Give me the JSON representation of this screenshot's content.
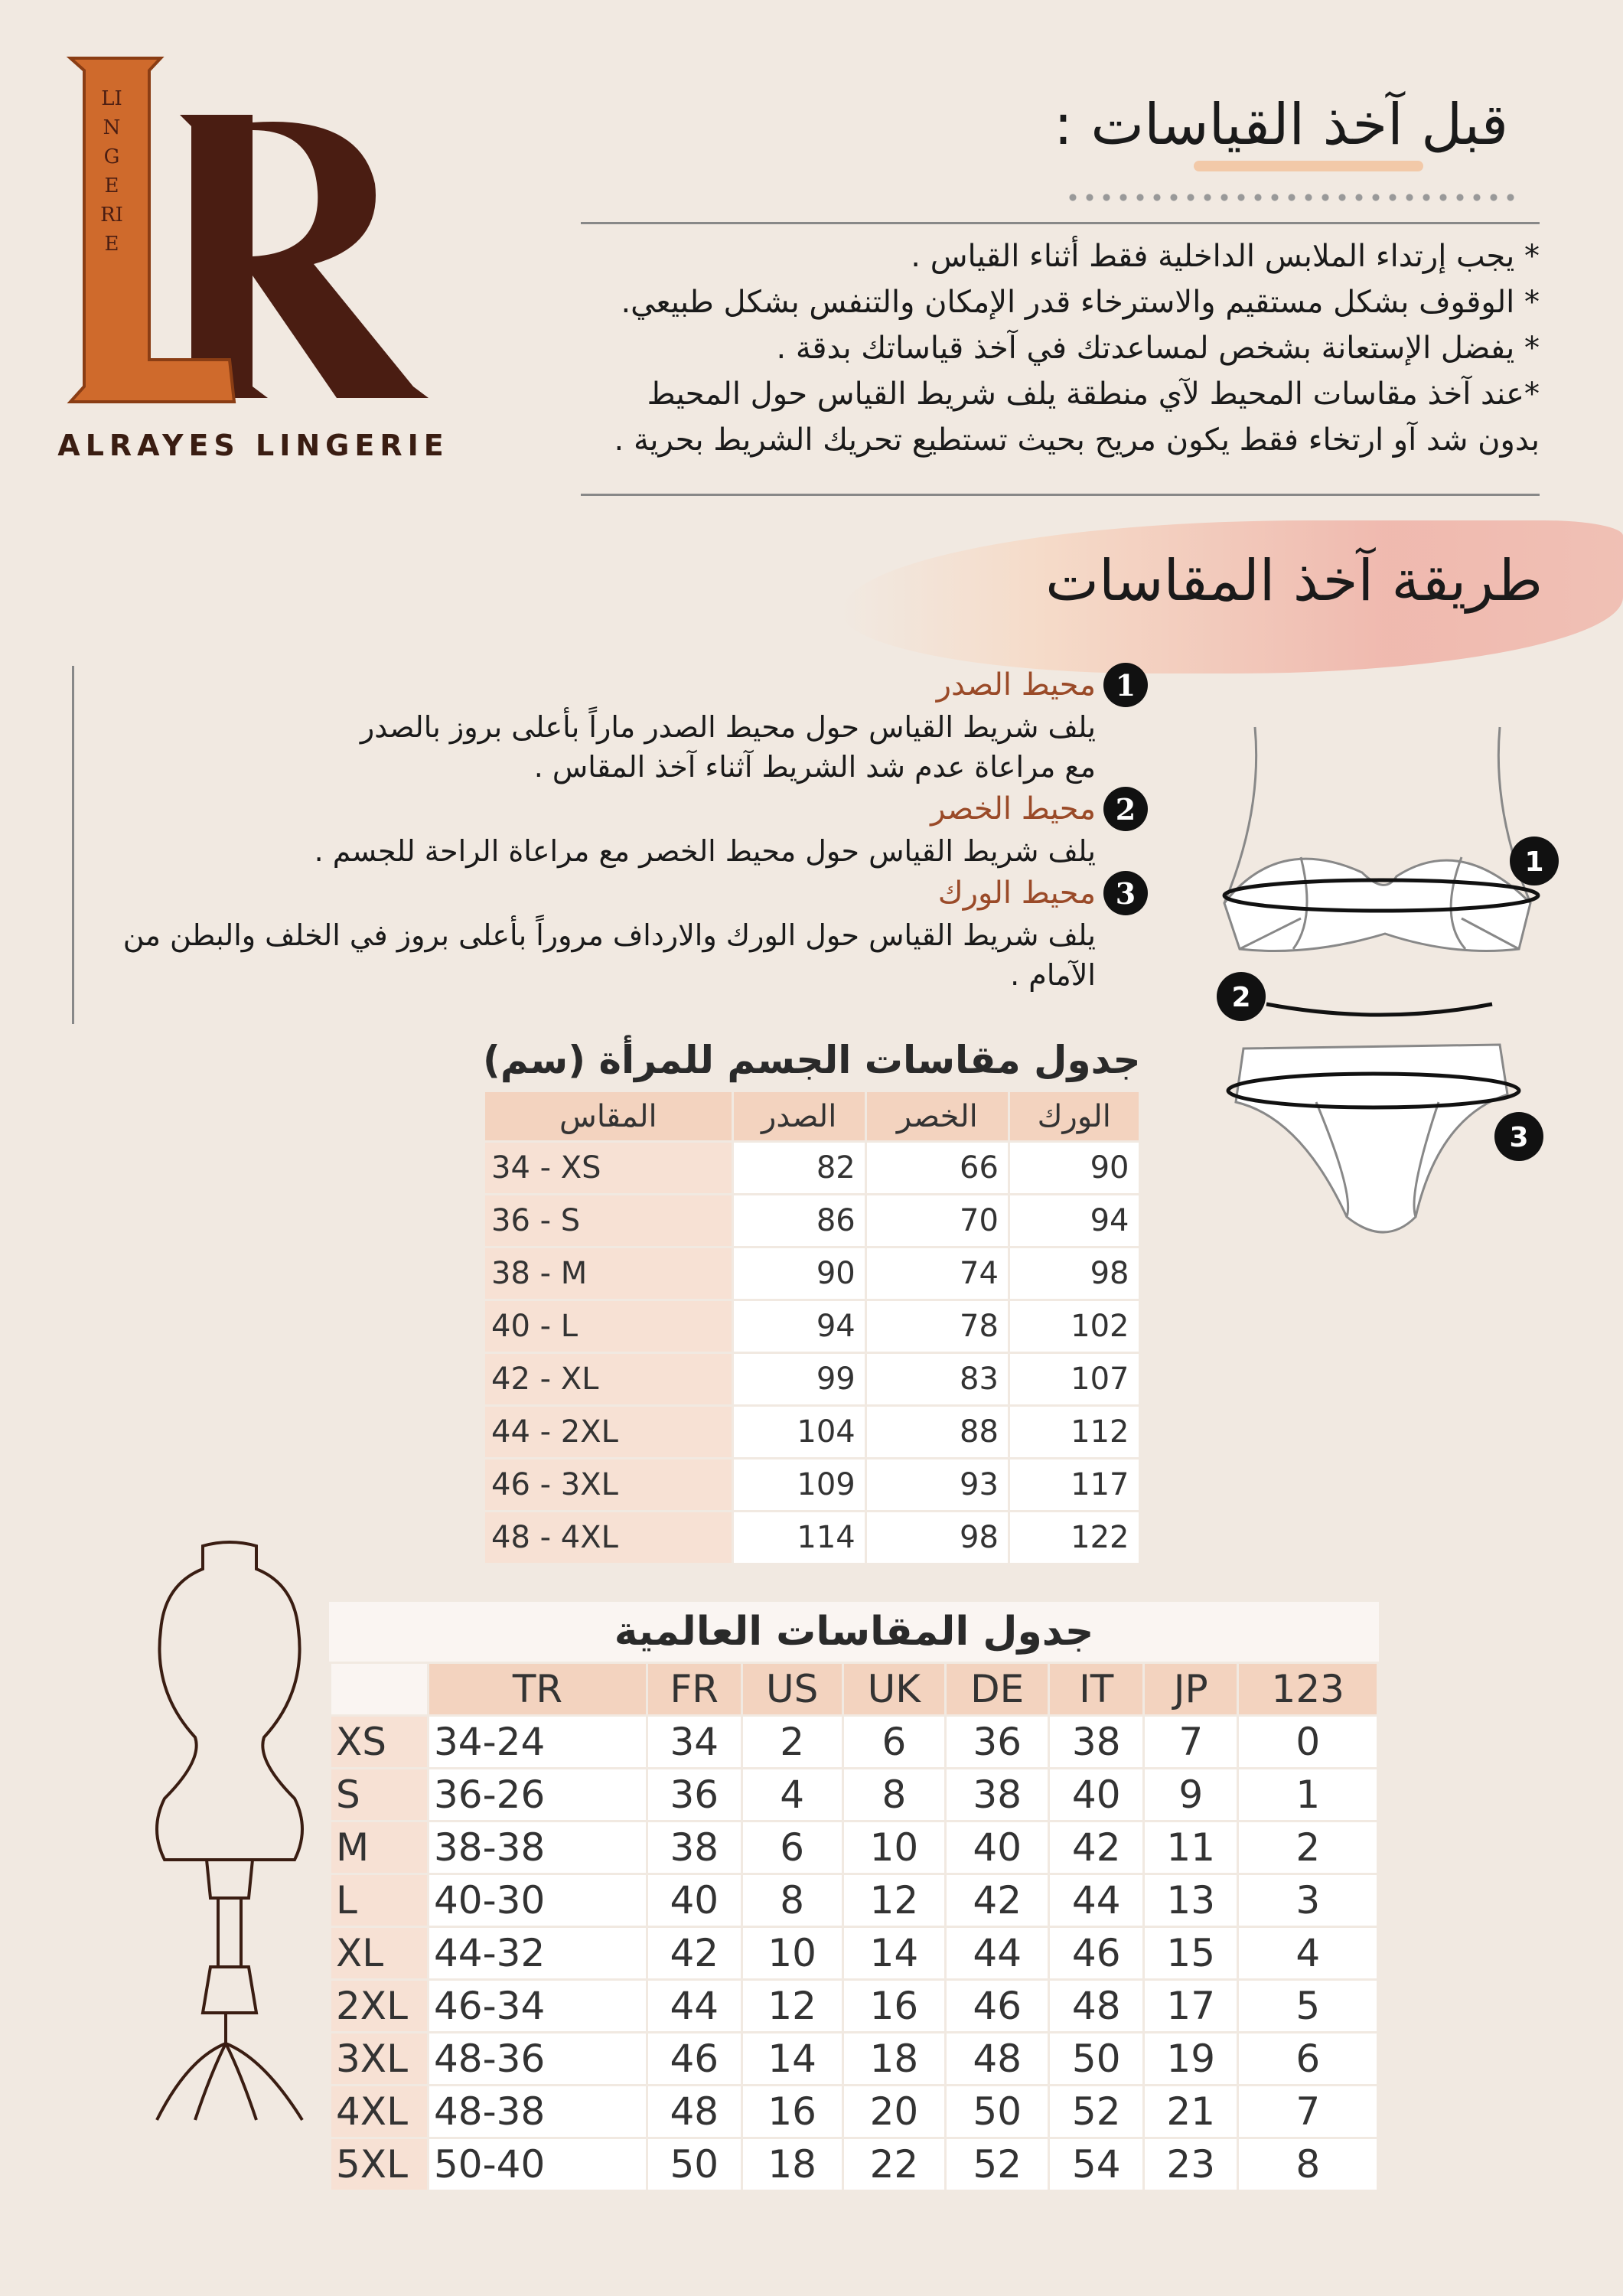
{
  "logo": {
    "initial_l": "L",
    "initial_r": "R",
    "vertical_text": "LINGERIE",
    "brand": "ALRAYES LINGERIE"
  },
  "before": {
    "title": "قبل آخذ القياسات :",
    "bullets": [
      "* يجب إرتداء الملابس الداخلية فقط أثناء القياس .",
      "* الوقوف بشكل مستقيم والاسترخاء قدر الإمكان والتنفس بشكل طبيعي.",
      "* يفضل الإستعانة بشخص لمساعدتك في آخذ قياساتك بدقة .",
      "*عند آخذ مقاسات المحيط لآي منطقة يلف شريط القياس حول المحيط",
      "بدون شد آو ارتخاء فقط يكون مريح بحيث تستطيع تحريك الشريط بحرية ."
    ]
  },
  "method": {
    "title": "طريقة آخذ المقاسات",
    "items": [
      {
        "number": "1",
        "heading": "محيط الصدر",
        "lines": [
          "يلف شريط القياس حول محيط الصدر ماراً بأعلى بروز بالصدر",
          "مع مراعاة عدم شد الشريط آثناء آخذ المقاس ."
        ]
      },
      {
        "number": "2",
        "heading": "محيط الخصر",
        "lines": [
          "يلف شريط القياس حول محيط الخصر مع مراعاة الراحة للجسم ."
        ]
      },
      {
        "number": "3",
        "heading": "محيط الورك",
        "lines": [
          "يلف شريط القياس حول الورك والارداف مروراً بأعلى بروز في الخلف والبطن من الآمام ."
        ]
      }
    ],
    "diagram_labels": [
      "1",
      "2",
      "3"
    ]
  },
  "body_table": {
    "title": "جدول مقاسات الجسم للمرأة (سم)",
    "headers": [
      "المقاس",
      "الصدر",
      "الخصر",
      "الورك"
    ],
    "rows": [
      [
        "34 - XS",
        "82",
        "66",
        "90"
      ],
      [
        "36 - S",
        "86",
        "70",
        "94"
      ],
      [
        "38 - M",
        "90",
        "74",
        "98"
      ],
      [
        "40 - L",
        "94",
        "78",
        "102"
      ],
      [
        "42 - XL",
        "99",
        "83",
        "107"
      ],
      [
        "44 - 2XL",
        "104",
        "88",
        "112"
      ],
      [
        "46 - 3XL",
        "109",
        "93",
        "117"
      ],
      [
        "48 - 4XL",
        "114",
        "98",
        "122"
      ]
    ]
  },
  "intl_table": {
    "title": "جدول المقاسات العالمية",
    "headers": [
      "TR",
      "FR",
      "US",
      "UK",
      "DE",
      "IT",
      "JP",
      "123"
    ],
    "rows": [
      [
        "XS",
        "34-24",
        "34",
        "2",
        "6",
        "36",
        "38",
        "7",
        "0"
      ],
      [
        "S",
        "36-26",
        "36",
        "4",
        "8",
        "38",
        "40",
        "9",
        "1"
      ],
      [
        "M",
        "38-38",
        "38",
        "6",
        "10",
        "40",
        "42",
        "11",
        "2"
      ],
      [
        "L",
        "40-30",
        "40",
        "8",
        "12",
        "42",
        "44",
        "13",
        "3"
      ],
      [
        "XL",
        "44-32",
        "42",
        "10",
        "14",
        "44",
        "46",
        "15",
        "4"
      ],
      [
        "2XL",
        "46-34",
        "44",
        "12",
        "16",
        "46",
        "48",
        "17",
        "5"
      ],
      [
        "3XL",
        "48-36",
        "46",
        "14",
        "18",
        "48",
        "50",
        "19",
        "6"
      ],
      [
        "4XL",
        "48-38",
        "48",
        "16",
        "20",
        "50",
        "52",
        "21",
        "7"
      ],
      [
        "5XL",
        "50-40",
        "50",
        "18",
        "22",
        "52",
        "54",
        "23",
        "8"
      ]
    ]
  },
  "colors": {
    "background": "#f1e9e1",
    "accent_orange": "#cf6a2c",
    "accent_brown": "#4a1d12",
    "header_peach": "#f3d3bf"
  }
}
